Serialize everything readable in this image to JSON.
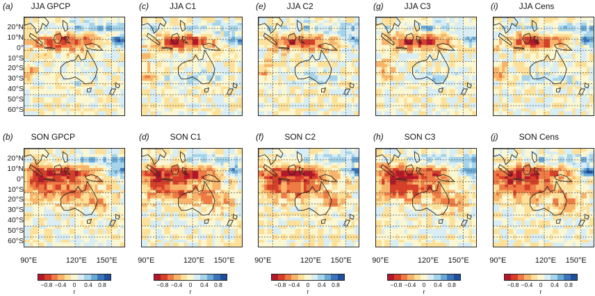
{
  "rows": [
    {
      "season": "JJA",
      "panels": [
        {
          "tag": "(a)",
          "title": "JJA GPCP",
          "variant": 0
        },
        {
          "tag": "(c)",
          "title": "JJA C1",
          "variant": 1
        },
        {
          "tag": "(e)",
          "title": "JJA C2",
          "variant": 2
        },
        {
          "tag": "(g)",
          "title": "JJA C3",
          "variant": 3
        },
        {
          "tag": "(i)",
          "title": "JJA Cens",
          "variant": 4
        }
      ]
    },
    {
      "season": "SON",
      "panels": [
        {
          "tag": "(b)",
          "title": "SON GPCP",
          "variant": 0
        },
        {
          "tag": "(d)",
          "title": "SON C1",
          "variant": 1
        },
        {
          "tag": "(f)",
          "title": "SON C2",
          "variant": 2
        },
        {
          "tag": "(h)",
          "title": "SON C3",
          "variant": 3
        },
        {
          "tag": "(j)",
          "title": "SON Cens",
          "variant": 4
        }
      ]
    }
  ],
  "lat_labels": [
    "20°N",
    "10°N",
    "0°",
    "10°S",
    "20°S",
    "30°S",
    "40°S",
    "50°S",
    "60°S"
  ],
  "lon_labels": [
    "90°E",
    "120°E",
    "150°E"
  ],
  "colorbar": {
    "tick_labels": [
      "−0.8",
      "−0.4",
      "0",
      "0.4",
      "0.8"
    ],
    "unit_label": "r",
    "colors": [
      "#b2182b",
      "#d6402a",
      "#ef7a45",
      "#f8b46a",
      "#fde19a",
      "#fbf7d2",
      "#d8eef4",
      "#a6d4ea",
      "#6aa9d6",
      "#3b74b8",
      "#1e4e9c"
    ]
  }
}
